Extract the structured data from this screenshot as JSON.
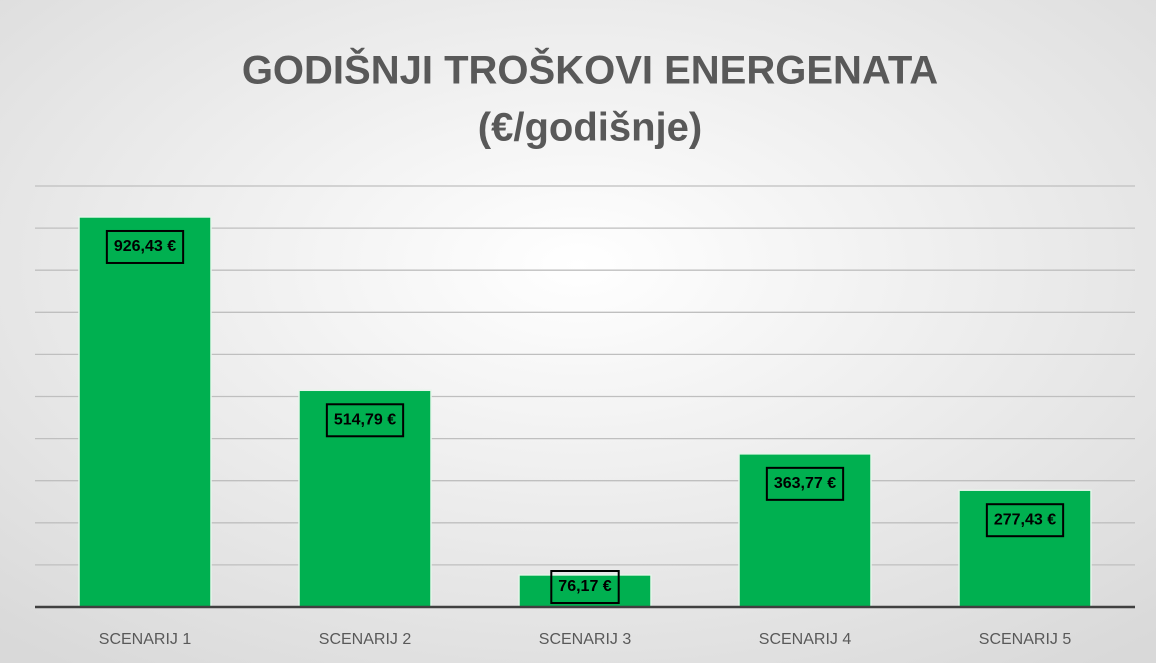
{
  "chart_data": {
    "type": "bar",
    "title": "GODIŠNJI TROŠKOVI ENERGENATA",
    "subtitle": "(€/godišnje)",
    "categories": [
      "SCENARIJ 1",
      "SCENARIJ 2",
      "SCENARIJ 3",
      "SCENARIJ 4",
      "SCENARIJ 5"
    ],
    "values": [
      926.43,
      514.79,
      76.17,
      363.77,
      277.43
    ],
    "value_labels": [
      "926,43 €",
      "514,79 €",
      "76,17 €",
      "363,77 €",
      "277,43 €"
    ],
    "color": "#00b050",
    "ylim": [
      0,
      1000
    ],
    "yticks": [
      0,
      100,
      200,
      300,
      400,
      500,
      600,
      700,
      800,
      900,
      1000
    ],
    "grid": true
  }
}
